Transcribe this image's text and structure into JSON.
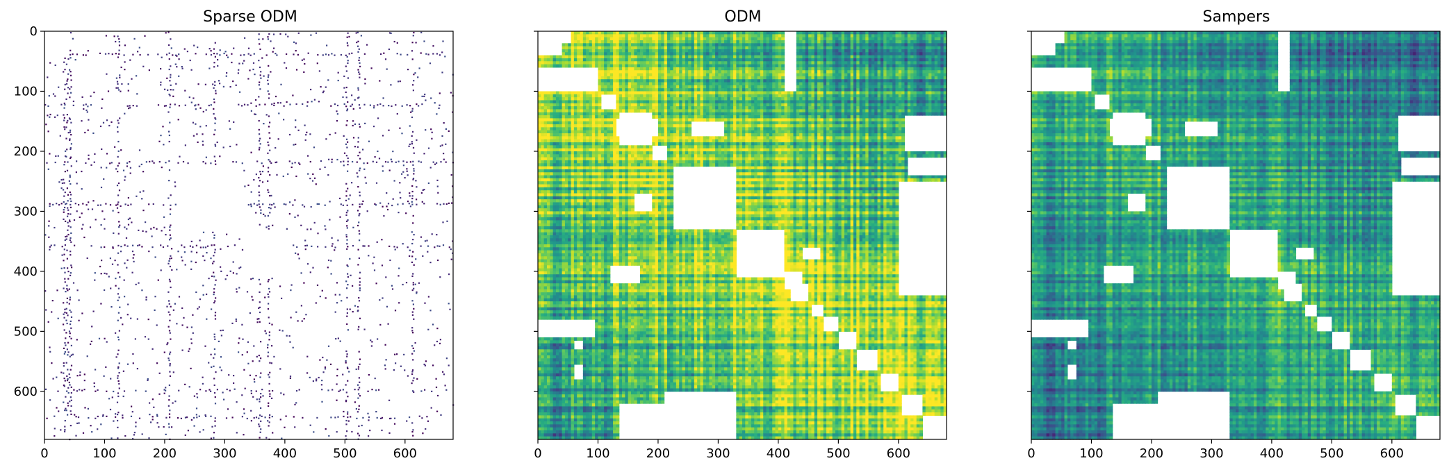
{
  "chart_data": [
    {
      "type": "heatmap",
      "title": "Sparse ODM",
      "xlim": [
        0,
        680
      ],
      "ylim": [
        680,
        0
      ],
      "xticks": [
        "0",
        "100",
        "200",
        "300",
        "400",
        "500",
        "600"
      ],
      "yticks": [
        "0",
        "100",
        "200",
        "300",
        "400",
        "500",
        "600"
      ],
      "show_y_tick_labels": true,
      "colormap": "viridis",
      "background": "#ffffff",
      "pattern": "sparse",
      "matrix_size": 680
    },
    {
      "type": "heatmap",
      "title": "ODM",
      "xlim": [
        0,
        680
      ],
      "ylim": [
        680,
        0
      ],
      "xticks": [
        "0",
        "100",
        "200",
        "300",
        "400",
        "500",
        "600"
      ],
      "yticks": [
        "0",
        "100",
        "200",
        "300",
        "400",
        "500",
        "600"
      ],
      "show_y_tick_labels": false,
      "colormap": "viridis",
      "background": "#ffffff",
      "pattern": "dense-bright",
      "matrix_size": 680
    },
    {
      "type": "heatmap",
      "title": "Sampers",
      "xlim": [
        0,
        680
      ],
      "ylim": [
        680,
        0
      ],
      "xticks": [
        "0",
        "100",
        "200",
        "300",
        "400",
        "500",
        "600"
      ],
      "yticks": [
        "0",
        "100",
        "200",
        "300",
        "400",
        "500",
        "600"
      ],
      "show_y_tick_labels": false,
      "colormap": "viridis",
      "background": "#ffffff",
      "pattern": "dense-dark",
      "matrix_size": 680
    }
  ]
}
